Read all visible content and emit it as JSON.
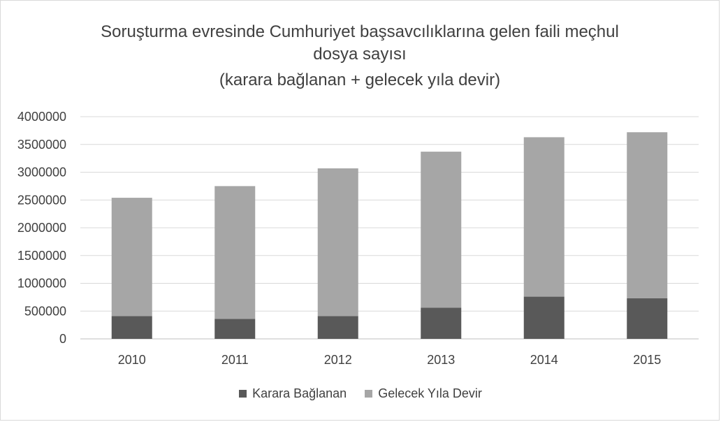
{
  "chart_data": {
    "type": "bar",
    "stacked": true,
    "title": [
      "Soruşturma  evresinde  Cumhuriyet  başsavcılıklarına  gelen faili meçhul",
      "dosya  sayısı",
      "(karara bağlanan + gelecek yıla devir)"
    ],
    "categories": [
      "2010",
      "2011",
      "2012",
      "2013",
      "2014",
      "2015"
    ],
    "series": [
      {
        "name": "Karara Bağlanan",
        "color": "#595959",
        "values": [
          410000,
          360000,
          410000,
          560000,
          760000,
          730000
        ]
      },
      {
        "name": "Gelecek Yıla Devir",
        "color": "#a6a6a6",
        "values": [
          2130000,
          2390000,
          2660000,
          2810000,
          2870000,
          2990000
        ]
      }
    ],
    "ylim": [
      0,
      4000000
    ],
    "yticks": [
      "0",
      "500000",
      "1000000",
      "1500000",
      "2000000",
      "2500000",
      "3000000",
      "3500000",
      "4000000"
    ],
    "grid": true,
    "legend_position": "bottom"
  }
}
